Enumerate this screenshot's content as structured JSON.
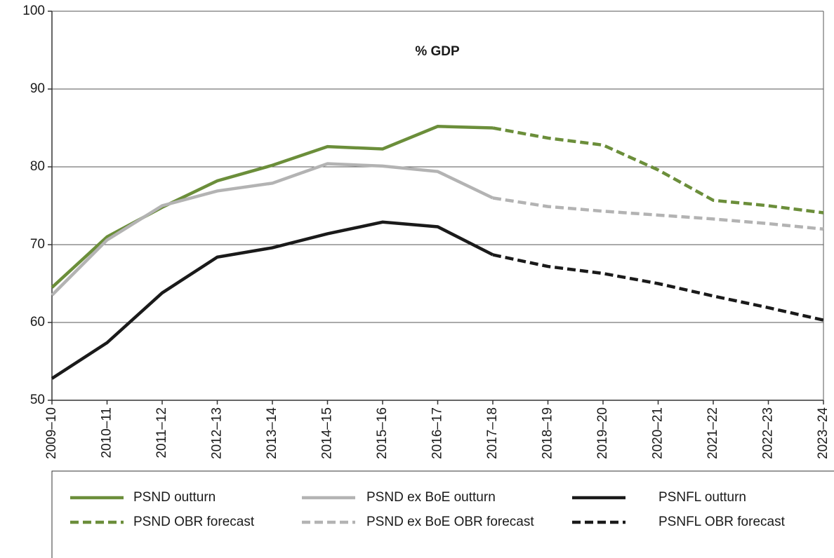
{
  "chart_data": {
    "type": "line",
    "annotation": "% GDP",
    "categories": [
      "2009–10",
      "2010–11",
      "2011–12",
      "2012–13",
      "2013–14",
      "2014–15",
      "2015–16",
      "2016–17",
      "2017–18",
      "2018–19",
      "2019–20",
      "2020–21",
      "2021–22",
      "2022–23",
      "2023–24"
    ],
    "series": [
      {
        "name": "PSND outturn",
        "color": "#6b8e3a",
        "style": "solid",
        "values": [
          64.5,
          71.0,
          74.8,
          78.2,
          80.2,
          82.6,
          82.3,
          85.2,
          85.0,
          null,
          null,
          null,
          null,
          null,
          null
        ]
      },
      {
        "name": "PSND ex BoE outturn",
        "color": "#b3b3b3",
        "style": "solid",
        "values": [
          63.5,
          70.6,
          75.0,
          76.9,
          77.9,
          80.4,
          80.1,
          79.4,
          76.0,
          null,
          null,
          null,
          null,
          null,
          null
        ]
      },
      {
        "name": "PSNFL outturn",
        "color": "#1a1a1a",
        "style": "solid",
        "values": [
          52.8,
          57.4,
          63.8,
          68.4,
          69.6,
          71.4,
          72.9,
          72.3,
          68.7,
          null,
          null,
          null,
          null,
          null,
          null
        ]
      },
      {
        "name": "PSND OBR forecast",
        "color": "#6b8e3a",
        "style": "dashed",
        "values": [
          null,
          null,
          null,
          null,
          null,
          null,
          null,
          null,
          85.0,
          83.7,
          82.8,
          79.6,
          75.7,
          75.0,
          74.1
        ]
      },
      {
        "name": "PSND ex BoE OBR forecast",
        "color": "#b3b3b3",
        "style": "dashed",
        "values": [
          null,
          null,
          null,
          null,
          null,
          null,
          null,
          null,
          76.0,
          74.9,
          74.3,
          73.8,
          73.3,
          72.7,
          72.0
        ]
      },
      {
        "name": "PSNFL OBR forecast",
        "color": "#1a1a1a",
        "style": "dashed",
        "values": [
          null,
          null,
          null,
          null,
          null,
          null,
          null,
          null,
          68.7,
          67.2,
          66.3,
          65.0,
          63.4,
          61.9,
          60.3
        ]
      }
    ],
    "ylim": [
      50,
      100
    ],
    "yticks": [
      50,
      60,
      70,
      80,
      90,
      100
    ],
    "grid": true,
    "legend": "bottom"
  }
}
